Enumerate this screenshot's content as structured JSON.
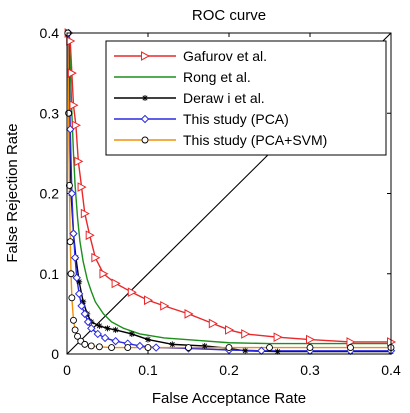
{
  "chart_data": {
    "type": "line",
    "title": "ROC curve",
    "xlabel": "False Acceptance Rate",
    "ylabel": "False Rejection Rate",
    "xlim": [
      0,
      0.4
    ],
    "ylim": [
      0,
      0.4
    ],
    "xticks": [
      0,
      0.1,
      0.2,
      0.3,
      0.4
    ],
    "yticks": [
      0,
      0.1,
      0.2,
      0.3,
      0.4
    ],
    "xtick_labels": [
      "0",
      "0.1",
      "0.2",
      "0.3",
      "0.4"
    ],
    "ytick_labels": [
      "0",
      "0.1",
      "0.2",
      "0.3",
      "0.4"
    ],
    "grid": false,
    "legend_position": "top-right",
    "reference_line": {
      "x": [
        0,
        0.4
      ],
      "y": [
        0,
        0.4
      ],
      "color": "#000000"
    },
    "series": [
      {
        "name": "Gafurov et al.",
        "color": "#e8282a",
        "marker": "triangle-right",
        "x": [
          0.002,
          0.004,
          0.006,
          0.008,
          0.011,
          0.014,
          0.018,
          0.022,
          0.028,
          0.035,
          0.045,
          0.06,
          0.08,
          0.1,
          0.12,
          0.15,
          0.18,
          0.2,
          0.22,
          0.26,
          0.3,
          0.35,
          0.4
        ],
        "y": [
          0.4,
          0.39,
          0.35,
          0.31,
          0.285,
          0.24,
          0.208,
          0.175,
          0.148,
          0.12,
          0.1,
          0.088,
          0.077,
          0.067,
          0.06,
          0.05,
          0.038,
          0.03,
          0.025,
          0.021,
          0.018,
          0.015,
          0.015
        ]
      },
      {
        "name": "Rong et al.",
        "color": "#1c8f1c",
        "marker": "none",
        "x": [
          0.002,
          0.004,
          0.006,
          0.008,
          0.01,
          0.013,
          0.016,
          0.02,
          0.025,
          0.03,
          0.035,
          0.045,
          0.055,
          0.07,
          0.09,
          0.12,
          0.16,
          0.2,
          0.25,
          0.3,
          0.35,
          0.4
        ],
        "y": [
          0.4,
          0.36,
          0.3,
          0.25,
          0.21,
          0.17,
          0.14,
          0.115,
          0.093,
          0.078,
          0.065,
          0.05,
          0.04,
          0.032,
          0.025,
          0.02,
          0.017,
          0.014,
          0.013,
          0.013,
          0.013,
          0.013
        ]
      },
      {
        "name": "Deraw i et al.",
        "color": "#000000",
        "marker": "asterisk",
        "x": [
          0.001,
          0.003,
          0.005,
          0.008,
          0.011,
          0.015,
          0.02,
          0.025,
          0.03,
          0.04,
          0.05,
          0.06,
          0.08,
          0.1,
          0.13,
          0.17,
          0.2,
          0.22,
          0.26,
          0.3,
          0.35,
          0.4
        ],
        "y": [
          0.4,
          0.3,
          0.2,
          0.15,
          0.12,
          0.09,
          0.065,
          0.05,
          0.04,
          0.035,
          0.032,
          0.03,
          0.025,
          0.018,
          0.012,
          0.01,
          0.007,
          0.004,
          0.003,
          0.003,
          0.003,
          0.003
        ]
      },
      {
        "name": "This study (PCA)",
        "color": "#2a2ae0",
        "marker": "diamond",
        "x": [
          0.002,
          0.004,
          0.006,
          0.008,
          0.01,
          0.012,
          0.015,
          0.018,
          0.022,
          0.026,
          0.03,
          0.038,
          0.047,
          0.06,
          0.075,
          0.09,
          0.11,
          0.15,
          0.2,
          0.24,
          0.3,
          0.35,
          0.4
        ],
        "y": [
          0.4,
          0.28,
          0.2,
          0.15,
          0.12,
          0.095,
          0.075,
          0.06,
          0.05,
          0.04,
          0.032,
          0.025,
          0.02,
          0.016,
          0.013,
          0.01,
          0.008,
          0.007,
          0.005,
          0.004,
          0.004,
          0.004,
          0.004
        ]
      },
      {
        "name": "This study (PCA+SVM)",
        "color": "#f0900a",
        "marker": "circle",
        "x": [
          0.001,
          0.002,
          0.003,
          0.004,
          0.005,
          0.006,
          0.008,
          0.01,
          0.013,
          0.017,
          0.022,
          0.03,
          0.04,
          0.055,
          0.075,
          0.1,
          0.15,
          0.2,
          0.25,
          0.3,
          0.35,
          0.4
        ],
        "y": [
          0.4,
          0.3,
          0.21,
          0.14,
          0.1,
          0.07,
          0.042,
          0.03,
          0.022,
          0.016,
          0.012,
          0.01,
          0.009,
          0.008,
          0.008,
          0.008,
          0.008,
          0.008,
          0.008,
          0.008,
          0.008,
          0.008
        ]
      }
    ]
  }
}
